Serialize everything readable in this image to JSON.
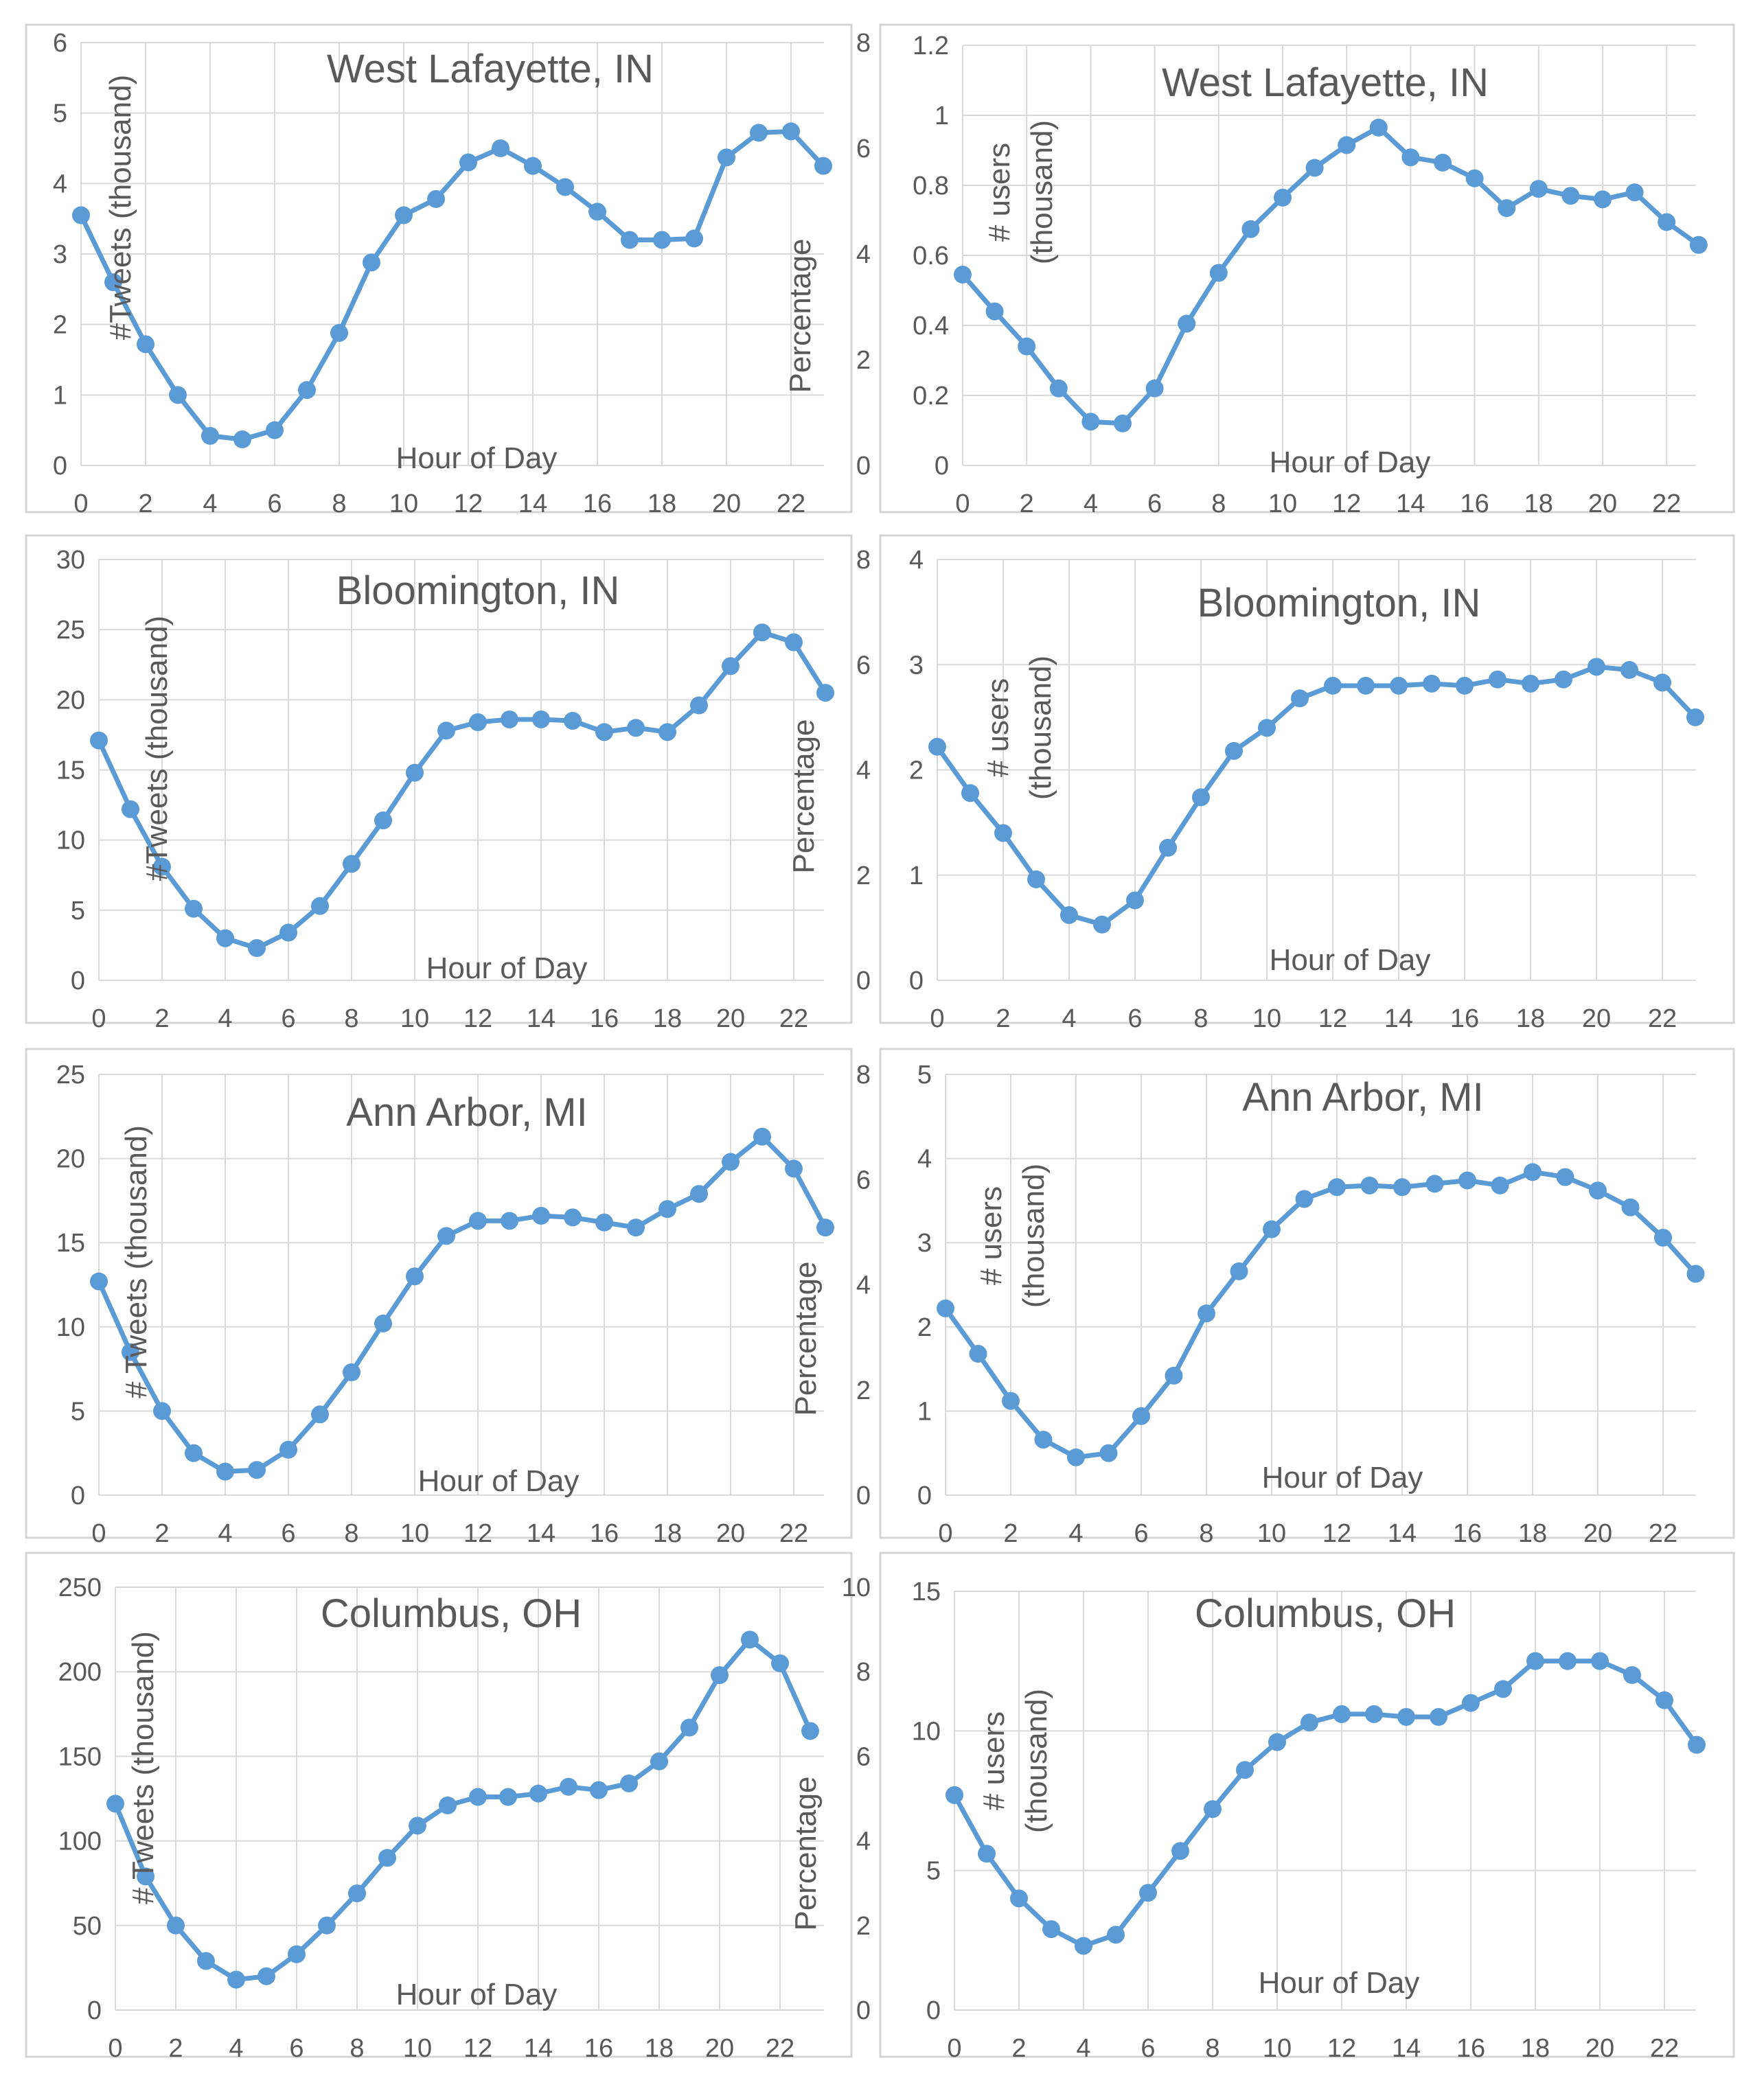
{
  "chart_data": [
    {
      "type": "line",
      "title": "West Lafayette, IN",
      "xlabel": "Hour of Day",
      "ylabel": "#Tweets (thousand)",
      "y2label": "Percentage",
      "ylim": [
        0,
        6
      ],
      "yticks": [
        "0",
        "1",
        "2",
        "3",
        "4",
        "5",
        "6"
      ],
      "y2lim": [
        0,
        8
      ],
      "y2ticks": [
        "0",
        "2",
        "4",
        "6",
        "8"
      ],
      "xticks": [
        "0",
        "2",
        "4",
        "6",
        "8",
        "10",
        "12",
        "14",
        "16",
        "18",
        "20",
        "22"
      ],
      "grid": true,
      "x": [
        0,
        1,
        2,
        3,
        4,
        5,
        6,
        7,
        8,
        9,
        10,
        11,
        12,
        13,
        14,
        15,
        16,
        17,
        18,
        19,
        20,
        21,
        22,
        23
      ],
      "values": [
        3.55,
        2.6,
        1.72,
        1.0,
        0.42,
        0.37,
        0.5,
        1.07,
        1.88,
        2.88,
        3.55,
        3.78,
        4.3,
        4.5,
        4.25,
        3.95,
        3.6,
        3.2,
        3.2,
        3.22,
        4.37,
        4.72,
        4.74,
        4.25
      ]
    },
    {
      "type": "line",
      "title": "West Lafayette, IN",
      "xlabel": "Hour of Day",
      "ylabel": "# users (thousand)",
      "ylim": [
        0,
        1.2
      ],
      "yticks": [
        "0",
        "0.2",
        "0.4",
        "0.6",
        "0.8",
        "1",
        "1.2"
      ],
      "xticks": [
        "0",
        "2",
        "4",
        "6",
        "8",
        "10",
        "12",
        "14",
        "16",
        "18",
        "20",
        "22"
      ],
      "grid": true,
      "x": [
        0,
        1,
        2,
        3,
        4,
        5,
        6,
        7,
        8,
        9,
        10,
        11,
        12,
        13,
        14,
        15,
        16,
        17,
        18,
        19,
        20,
        21,
        22,
        23
      ],
      "values": [
        0.545,
        0.44,
        0.34,
        0.22,
        0.125,
        0.12,
        0.22,
        0.405,
        0.55,
        0.675,
        0.765,
        0.85,
        0.915,
        0.965,
        0.88,
        0.865,
        0.82,
        0.735,
        0.79,
        0.77,
        0.76,
        0.78,
        0.695,
        0.63
      ]
    },
    {
      "type": "line",
      "title": "Bloomington, IN",
      "xlabel": "Hour of Day",
      "ylabel": "#Tweets (thousand)",
      "y2label": "Percentage",
      "ylim": [
        0,
        30
      ],
      "yticks": [
        "0",
        "5",
        "10",
        "15",
        "20",
        "25",
        "30"
      ],
      "y2lim": [
        0,
        8
      ],
      "y2ticks": [
        "0",
        "2",
        "4",
        "6",
        "8"
      ],
      "xticks": [
        "0",
        "2",
        "4",
        "6",
        "8",
        "10",
        "12",
        "14",
        "16",
        "18",
        "20",
        "22"
      ],
      "grid": true,
      "x": [
        0,
        1,
        2,
        3,
        4,
        5,
        6,
        7,
        8,
        9,
        10,
        11,
        12,
        13,
        14,
        15,
        16,
        17,
        18,
        19,
        20,
        21,
        22,
        23
      ],
      "values": [
        17.1,
        12.2,
        8.1,
        5.1,
        3.0,
        2.3,
        3.4,
        5.3,
        8.3,
        11.4,
        14.8,
        17.8,
        18.4,
        18.6,
        18.6,
        18.5,
        17.7,
        18.0,
        17.7,
        19.6,
        22.4,
        24.8,
        24.1,
        20.5
      ]
    },
    {
      "type": "line",
      "title": "Bloomington, IN",
      "xlabel": "Hour of Day",
      "ylabel": "# users (thousand)",
      "ylim": [
        0,
        4
      ],
      "yticks": [
        "0",
        "1",
        "2",
        "3",
        "4"
      ],
      "xticks": [
        "0",
        "2",
        "4",
        "6",
        "8",
        "10",
        "12",
        "14",
        "16",
        "18",
        "20",
        "22"
      ],
      "grid": true,
      "x": [
        0,
        1,
        2,
        3,
        4,
        5,
        6,
        7,
        8,
        9,
        10,
        11,
        12,
        13,
        14,
        15,
        16,
        17,
        18,
        19,
        20,
        21,
        22,
        23
      ],
      "values": [
        2.22,
        1.78,
        1.4,
        0.96,
        0.62,
        0.53,
        0.76,
        1.26,
        1.74,
        2.18,
        2.4,
        2.68,
        2.8,
        2.8,
        2.8,
        2.82,
        2.8,
        2.86,
        2.82,
        2.86,
        2.98,
        2.95,
        2.83,
        2.5
      ]
    },
    {
      "type": "line",
      "title": "Ann Arbor, MI",
      "xlabel": "Hour of Day",
      "ylabel": "# Tweets (thousand)",
      "y2label": "Percentage",
      "ylim": [
        0,
        25
      ],
      "yticks": [
        "0",
        "5",
        "10",
        "15",
        "20",
        "25"
      ],
      "y2lim": [
        0,
        8
      ],
      "y2ticks": [
        "0",
        "2",
        "4",
        "6",
        "8"
      ],
      "xticks": [
        "0",
        "2",
        "4",
        "6",
        "8",
        "10",
        "12",
        "14",
        "16",
        "18",
        "20",
        "22"
      ],
      "grid": true,
      "x": [
        0,
        1,
        2,
        3,
        4,
        5,
        6,
        7,
        8,
        9,
        10,
        11,
        12,
        13,
        14,
        15,
        16,
        17,
        18,
        19,
        20,
        21,
        22,
        23
      ],
      "values": [
        12.7,
        8.5,
        5.0,
        2.5,
        1.4,
        1.5,
        2.7,
        4.8,
        7.3,
        10.2,
        13.0,
        15.4,
        16.3,
        16.3,
        16.6,
        16.5,
        16.2,
        15.9,
        17.0,
        17.9,
        19.8,
        21.3,
        19.4,
        15.9
      ]
    },
    {
      "type": "line",
      "title": "Ann Arbor, MI",
      "xlabel": "Hour of Day",
      "ylabel": "# users (thousand)",
      "ylim": [
        0,
        5
      ],
      "yticks": [
        "0",
        "1",
        "2",
        "3",
        "4",
        "5"
      ],
      "xticks": [
        "0",
        "2",
        "4",
        "6",
        "8",
        "10",
        "12",
        "14",
        "16",
        "18",
        "20",
        "22"
      ],
      "grid": true,
      "x": [
        0,
        1,
        2,
        3,
        4,
        5,
        6,
        7,
        8,
        9,
        10,
        11,
        12,
        13,
        14,
        15,
        16,
        17,
        18,
        19,
        20,
        21,
        22,
        23
      ],
      "values": [
        2.22,
        1.68,
        1.12,
        0.66,
        0.45,
        0.5,
        0.94,
        1.42,
        2.16,
        2.66,
        3.16,
        3.52,
        3.66,
        3.68,
        3.66,
        3.7,
        3.74,
        3.68,
        3.84,
        3.78,
        3.62,
        3.42,
        3.06,
        2.63
      ]
    },
    {
      "type": "line",
      "title": "Columbus, OH",
      "xlabel": "Hour of Day",
      "ylabel": "# Tweets (thousand)",
      "y2label": "Percentage",
      "ylim": [
        0,
        250
      ],
      "yticks": [
        "0",
        "50",
        "100",
        "150",
        "200",
        "250"
      ],
      "y2lim": [
        0,
        10
      ],
      "y2ticks": [
        "0",
        "2",
        "4",
        "6",
        "8",
        "10"
      ],
      "xticks": [
        "0",
        "2",
        "4",
        "6",
        "8",
        "10",
        "12",
        "14",
        "16",
        "18",
        "20",
        "22"
      ],
      "grid": true,
      "x": [
        0,
        1,
        2,
        3,
        4,
        5,
        6,
        7,
        8,
        9,
        10,
        11,
        12,
        13,
        14,
        15,
        16,
        17,
        18,
        19,
        20,
        21,
        22,
        23
      ],
      "values": [
        122,
        79,
        50,
        29,
        18,
        20,
        33,
        50,
        69,
        90,
        109,
        121,
        126,
        126,
        128,
        132,
        130,
        134,
        147,
        167,
        198,
        219,
        205,
        165
      ]
    },
    {
      "type": "line",
      "title": "Columbus, OH",
      "xlabel": "Hour of Day",
      "ylabel": "# users (thousand)",
      "ylim": [
        0,
        15
      ],
      "yticks": [
        "0",
        "5",
        "10",
        "15"
      ],
      "xticks": [
        "0",
        "2",
        "4",
        "6",
        "8",
        "10",
        "12",
        "14",
        "16",
        "18",
        "20",
        "22"
      ],
      "grid": true,
      "x": [
        0,
        1,
        2,
        3,
        4,
        5,
        6,
        7,
        8,
        9,
        10,
        11,
        12,
        13,
        14,
        15,
        16,
        17,
        18,
        19,
        20,
        21,
        22,
        23
      ],
      "values": [
        7.7,
        5.6,
        4.0,
        2.9,
        2.3,
        2.7,
        4.2,
        5.7,
        7.2,
        8.6,
        9.6,
        10.3,
        10.6,
        10.6,
        10.5,
        10.5,
        11.0,
        11.5,
        12.5,
        12.5,
        12.5,
        12.0,
        11.1,
        9.5
      ]
    }
  ]
}
